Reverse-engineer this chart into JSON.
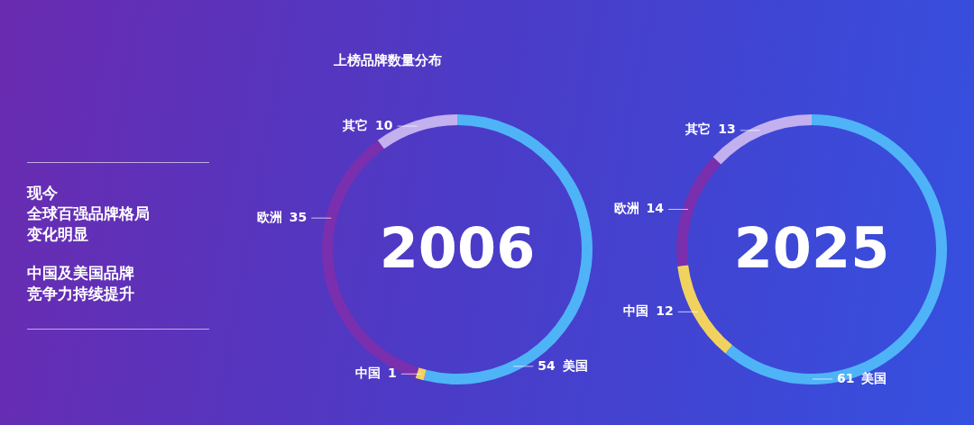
{
  "chart_data": [
    {
      "type": "donut",
      "title": "上榜品牌数量分布",
      "subtitle": "2006",
      "annotations": [
        "现今",
        "全球百强品牌格局",
        "变化明显",
        "中国及美国品牌",
        "竞争力持续提升"
      ],
      "categories": [
        "美国",
        "中国",
        "欧洲",
        "其它"
      ],
      "values": [
        54,
        1,
        35,
        10
      ],
      "colors": [
        "#4fb4f7",
        "#f2d25e",
        "#7a2fae",
        "#c3b0ef"
      ],
      "data_labels": true,
      "legend": false
    },
    {
      "type": "donut",
      "subtitle": "2025",
      "categories": [
        "美国",
        "中国",
        "欧洲",
        "其它"
      ],
      "values": [
        61,
        12,
        14,
        13
      ],
      "colors": [
        "#4fb4f7",
        "#f2d25e",
        "#7a2fae",
        "#c3b0ef"
      ],
      "data_labels": true,
      "legend": false
    }
  ]
}
